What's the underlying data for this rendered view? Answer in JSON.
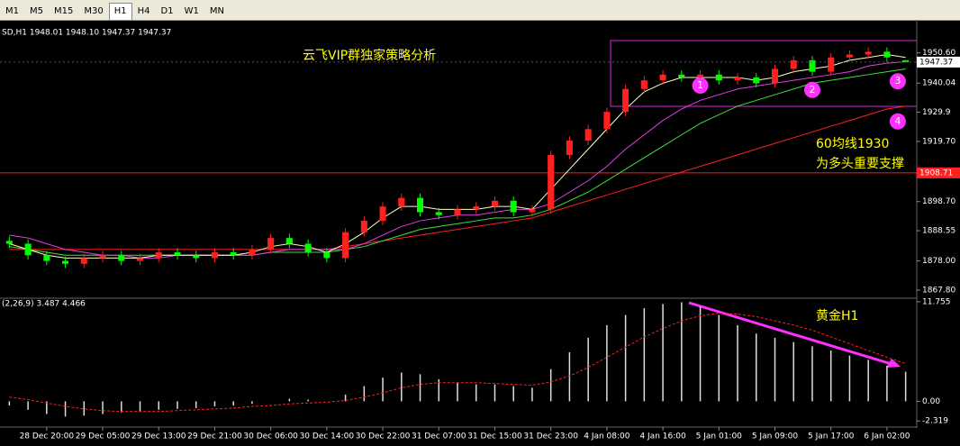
{
  "toolbar": {
    "timeframes": [
      "M1",
      "M5",
      "M15",
      "M30",
      "H1",
      "H4",
      "D1",
      "W1",
      "MN"
    ]
  },
  "chart_data": {
    "type": "candlestick",
    "header": "SD,H1  1948.01 1948.10 1947.37 1947.37",
    "categories": [
      null,
      null,
      "28 Dec 20:00",
      null,
      null,
      "29 Dec 05:00",
      null,
      null,
      "29 Dec 13:00",
      null,
      null,
      "29 Dec 21:00",
      null,
      null,
      "30 Dec 06:00",
      null,
      null,
      "30 Dec 14:00",
      null,
      null,
      "30 Dec 22:00",
      null,
      null,
      "31 Dec 07:00",
      null,
      null,
      "31 Dec 15:00",
      null,
      null,
      "31 Dec 23:00",
      null,
      null,
      "4 Jan 08:00",
      null,
      null,
      "4 Jan 16:00",
      null,
      null,
      "5 Jan 01:00",
      null,
      null,
      "5 Jan 09:00",
      null,
      null,
      "5 Jan 17:00",
      null,
      null,
      "6 Jan 02:00",
      null
    ],
    "open": [
      1885,
      1884,
      1880,
      1878,
      1877,
      1879,
      1880,
      1878,
      1879,
      1881,
      1880,
      1879,
      1881,
      1880,
      1882,
      1886,
      1884,
      1881,
      1879,
      1888,
      1892,
      1897,
      1900,
      1895,
      1894,
      1896,
      1897,
      1899,
      1895,
      1896,
      1915,
      1920,
      1924,
      1930,
      1938,
      1941,
      1943,
      1942,
      1943,
      1941,
      1942,
      1940,
      1945,
      1948,
      1944,
      1949,
      1950,
      1951,
      1948.01
    ],
    "high": [
      1886.5,
      1885.5,
      1881.5,
      1879.5,
      1880.5,
      1881.5,
      1881.5,
      1880.5,
      1882.5,
      1882.5,
      1881.5,
      1882.5,
      1882.5,
      1883.5,
      1887.5,
      1887.5,
      1885.5,
      1882.5,
      1889.5,
      1893.5,
      1898.5,
      1901.5,
      1901.5,
      1896.5,
      1897.5,
      1898.5,
      1900.5,
      1900.5,
      1897.5,
      1916.5,
      1921.5,
      1925.5,
      1931.5,
      1939.5,
      1942.5,
      1944.5,
      1944.5,
      1944.5,
      1944.5,
      1943.5,
      1943.5,
      1946.5,
      1949.5,
      1949.5,
      1950.5,
      1951.5,
      1952.5,
      1952.5,
      1948.1
    ],
    "low": [
      1882.5,
      1878.5,
      1876.5,
      1875.5,
      1875.5,
      1877.5,
      1876.5,
      1876.5,
      1877.5,
      1878.5,
      1877.5,
      1877.5,
      1878.5,
      1878.5,
      1880.5,
      1882.5,
      1879.5,
      1877.5,
      1877.5,
      1886.5,
      1890.5,
      1895.5,
      1893.5,
      1892.5,
      1892.5,
      1894.5,
      1895.5,
      1893.5,
      1893.5,
      1894.5,
      1913.5,
      1918.5,
      1922.5,
      1928.5,
      1936.5,
      1939.5,
      1940.5,
      1940.5,
      1939.5,
      1939.5,
      1938.5,
      1938.5,
      1943.5,
      1942.5,
      1942.5,
      1947.5,
      1948.5,
      1947.5,
      1947.37
    ],
    "close": [
      1884,
      1880,
      1878,
      1877,
      1879,
      1880,
      1878,
      1879,
      1881,
      1880,
      1879,
      1881,
      1880,
      1882,
      1886,
      1884,
      1881,
      1879,
      1888,
      1892,
      1897,
      1900,
      1895,
      1894,
      1896,
      1897,
      1899,
      1895,
      1896,
      1915,
      1920,
      1924,
      1930,
      1938,
      1941,
      1943,
      1942,
      1943,
      1941,
      1942,
      1940,
      1945,
      1948,
      1944,
      1949,
      1950,
      1951,
      1949,
      1947.37
    ],
    "up_color": "#ff2020",
    "down_color": "#00ff00",
    "lines": [
      {
        "color": "#ff2020",
        "values": [
          1882,
          1882,
          1882,
          1882,
          1882,
          1882,
          1882,
          1882,
          1882,
          1882,
          1882,
          1882,
          1882,
          1882,
          1882,
          1882,
          1882,
          1882,
          1883,
          1884,
          1885,
          1886,
          1887,
          1888,
          1889,
          1890,
          1891,
          1892,
          1893,
          1895,
          1897,
          1899,
          1901,
          1903,
          1905,
          1907,
          1909,
          1911,
          1913,
          1915,
          1917,
          1919,
          1921,
          1923,
          1925,
          1927,
          1929,
          1931,
          1932
        ]
      },
      {
        "color": "#40e040",
        "values": [
          1883,
          1882,
          1881,
          1880,
          1880,
          1880,
          1880,
          1880,
          1880,
          1880,
          1880,
          1880,
          1880,
          1880,
          1881,
          1881,
          1881,
          1881,
          1882,
          1883,
          1885,
          1887,
          1889,
          1890,
          1891,
          1892,
          1893,
          1893,
          1894,
          1896,
          1899,
          1902,
          1906,
          1910,
          1914,
          1918,
          1922,
          1926,
          1929,
          1932,
          1934,
          1936,
          1938,
          1940,
          1941,
          1942,
          1943,
          1944,
          1945
        ]
      },
      {
        "color": "#e040e0",
        "values": [
          1887,
          1886,
          1884,
          1882,
          1881,
          1880,
          1880,
          1879,
          1879,
          1880,
          1880,
          1880,
          1880,
          1880,
          1881,
          1882,
          1882,
          1882,
          1882,
          1884,
          1887,
          1890,
          1892,
          1893,
          1894,
          1894,
          1895,
          1896,
          1896,
          1898,
          1902,
          1906,
          1911,
          1917,
          1922,
          1927,
          1931,
          1934,
          1936,
          1938,
          1939,
          1940,
          1941,
          1942,
          1943,
          1944,
          1946,
          1947,
          1947.5
        ]
      },
      {
        "color": "#ffffc0",
        "values": [
          1884,
          1882,
          1880,
          1879,
          1879,
          1879,
          1879,
          1879,
          1880,
          1880,
          1880,
          1880,
          1880,
          1881,
          1883,
          1884,
          1883,
          1881,
          1884,
          1888,
          1893,
          1897,
          1897,
          1896,
          1896,
          1896,
          1897,
          1897,
          1896,
          1903,
          1910,
          1917,
          1924,
          1931,
          1937,
          1940,
          1942,
          1942,
          1942,
          1942,
          1941,
          1942,
          1944,
          1945,
          1946,
          1948,
          1949,
          1950,
          1949
        ]
      }
    ],
    "ylim": [
      1865.3,
      1959.6
    ],
    "yticks": [
      {
        "value": 1950.6,
        "label": "1950.60"
      },
      1940.04,
      1929.9,
      {
        "value": 1919.7,
        "label": "1919.70"
      },
      {
        "value": 1898.7,
        "label": "1898.70"
      },
      1888.55,
      {
        "value": 1878,
        "label": "1878.00"
      },
      {
        "value": 1867.8,
        "label": "1867.80"
      }
    ],
    "hline": {
      "value": 1908.71,
      "color": "#ff2020"
    },
    "last_price": 1947.37,
    "markers": [
      {
        "label": "1",
        "index": 37,
        "price": 1942
      },
      {
        "label": "2",
        "index": 43,
        "price": 1940.5
      },
      {
        "label": "3",
        "index": 47,
        "price": 1943.5
      },
      {
        "label": "4",
        "index": 47,
        "price": 1929.5
      }
    ],
    "annotations": [
      "云飞VIP群独家策略分析",
      "60均线1930",
      "为多头重要支撑",
      "黄金H1"
    ],
    "macd": {
      "label": "(2,26,9) 3.487 4.466",
      "values": [
        -0.5,
        -1,
        -1.5,
        -1.8,
        -1.7,
        -1.5,
        -1.3,
        -1.2,
        -1,
        -0.9,
        -0.8,
        -0.6,
        -0.5,
        -0.3,
        0,
        0.3,
        0.2,
        0,
        0.8,
        1.8,
        2.8,
        3.4,
        3.2,
        2.6,
        2.2,
        2,
        2,
        1.8,
        1.6,
        3.8,
        5.8,
        7.5,
        9,
        10.2,
        11,
        11.5,
        11.7,
        11.2,
        10.2,
        9,
        8,
        7.5,
        7,
        6.5,
        6,
        5.4,
        4.9,
        4.2,
        3.487
      ],
      "signal": [
        0.5,
        0.2,
        -0.2,
        -0.6,
        -0.9,
        -1.1,
        -1.2,
        -1.2,
        -1.2,
        -1.1,
        -1,
        -0.9,
        -0.8,
        -0.6,
        -0.5,
        -0.3,
        -0.2,
        -0.1,
        0.1,
        0.5,
        1,
        1.6,
        2,
        2.2,
        2.2,
        2.2,
        2.1,
        2,
        1.9,
        2.3,
        3,
        4,
        5.2,
        6.4,
        7.6,
        8.6,
        9.5,
        10.1,
        10.4,
        10.3,
        10,
        9.5,
        9,
        8.4,
        7.6,
        6.8,
        6,
        5.2,
        4.466
      ],
      "ylim": [
        -2.83,
        11.96
      ],
      "yticks": [
        11.755,
        {
          "value": 0,
          "label": "0.00"
        },
        -2.319
      ]
    }
  }
}
